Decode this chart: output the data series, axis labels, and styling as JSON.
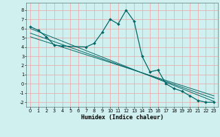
{
  "xlabel": "Humidex (Indice chaleur)",
  "bg_color": "#cff0ee",
  "grid_color": "#f0a0a0",
  "line_color": "#006666",
  "xlim": [
    -0.5,
    23.5
  ],
  "ylim": [
    -2.5,
    8.8
  ],
  "yticks": [
    -2,
    -1,
    0,
    1,
    2,
    3,
    4,
    5,
    6,
    7,
    8
  ],
  "xticks": [
    0,
    1,
    2,
    3,
    4,
    5,
    6,
    7,
    8,
    9,
    10,
    11,
    12,
    13,
    14,
    15,
    16,
    17,
    18,
    19,
    20,
    21,
    22,
    23
  ],
  "curve_x": [
    0,
    1,
    2,
    3,
    4,
    7,
    8,
    9,
    10,
    11,
    12,
    13,
    14,
    15,
    16,
    17,
    18,
    19,
    20,
    21,
    22,
    23
  ],
  "curve_y": [
    6.2,
    5.8,
    5.1,
    4.2,
    4.1,
    4.0,
    4.4,
    5.6,
    7.0,
    6.5,
    8.0,
    6.8,
    3.0,
    1.3,
    1.5,
    0.0,
    -0.5,
    -0.8,
    -1.3,
    -1.8,
    -2.0,
    -2.0
  ],
  "line1_x": [
    0,
    23
  ],
  "line1_y": [
    6.0,
    -1.9
  ],
  "line2_x": [
    0,
    23
  ],
  "line2_y": [
    5.5,
    -1.6
  ],
  "line3_x": [
    0,
    23
  ],
  "line3_y": [
    5.1,
    -1.3
  ]
}
